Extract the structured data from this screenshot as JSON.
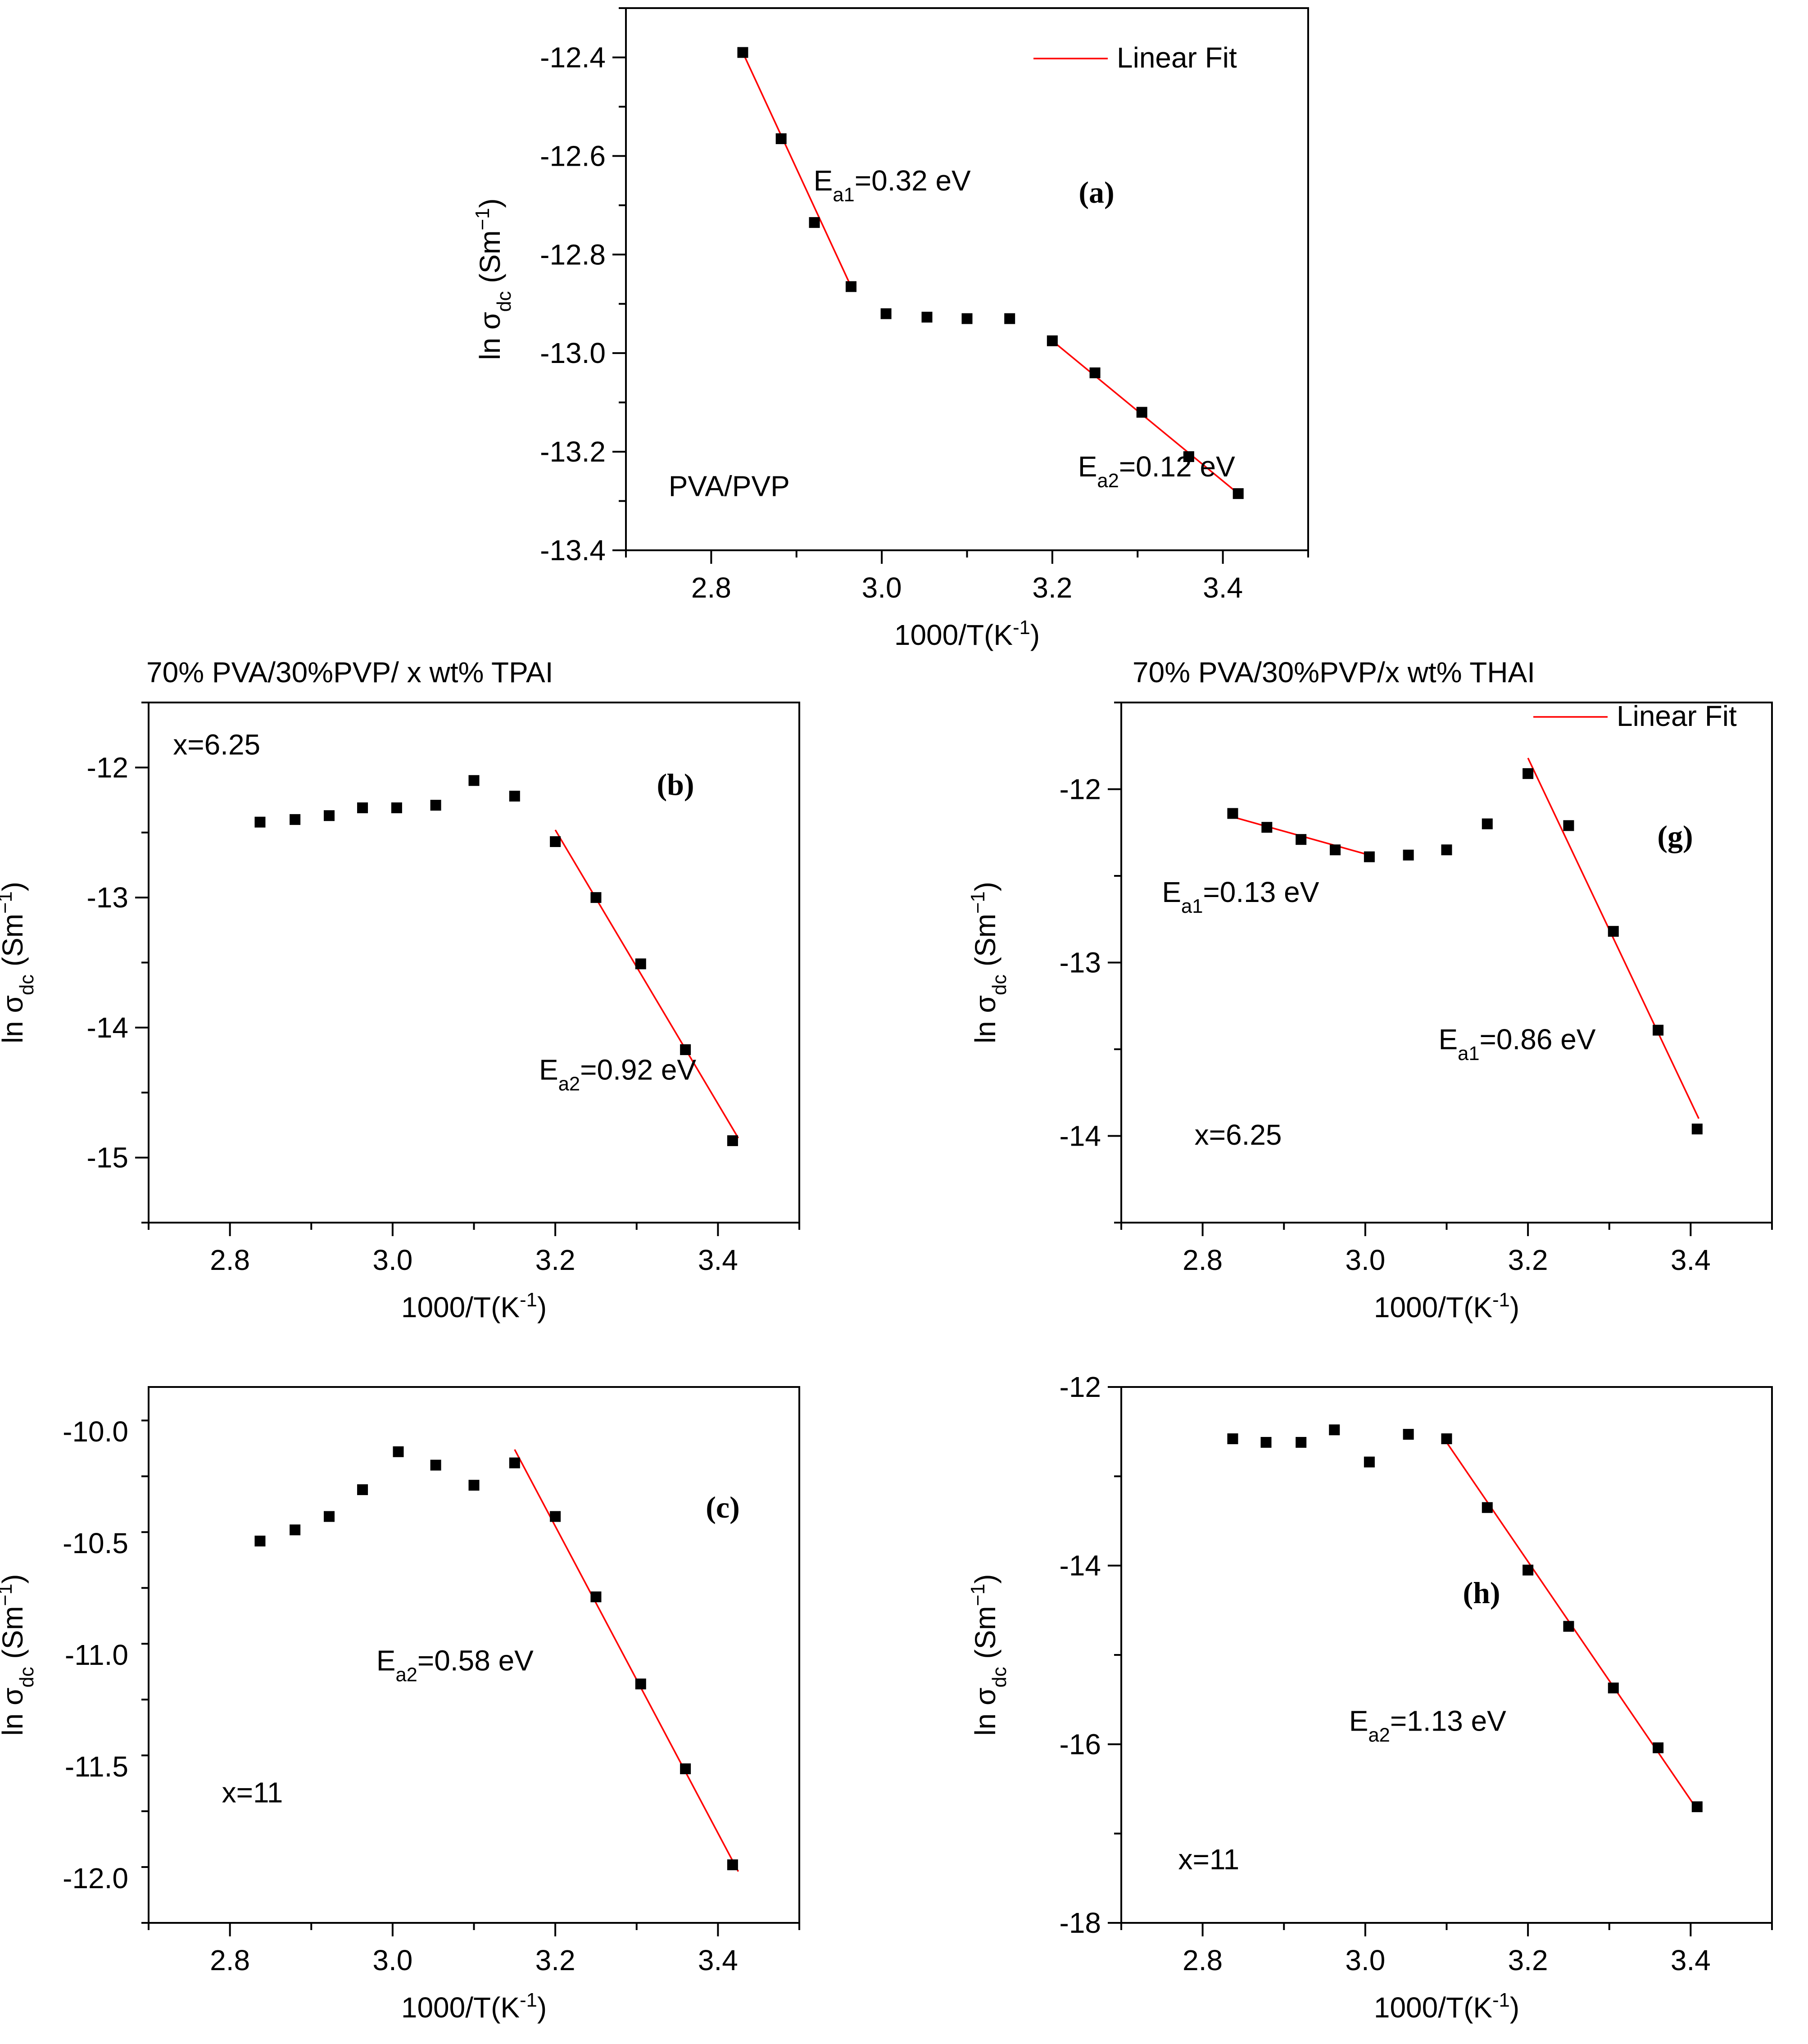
{
  "chart_data": [
    {
      "id": "a",
      "type": "scatter",
      "panel_label": "(a)",
      "title": "",
      "xlabel": "1000/T(K",
      "xlabel_sup": "-1",
      "xlabel_tail": ")",
      "ylabel_main": "ln σ",
      "ylabel_sub": "dc",
      "ylabel_unit": " (Sm",
      "ylabel_sup": "−1",
      "ylabel_tail": ")",
      "xlim": [
        2.7,
        3.5
      ],
      "ylim": [
        -13.4,
        -12.3
      ],
      "xticks": [
        2.8,
        3.0,
        3.2,
        3.4
      ],
      "xtick_labels": [
        "2.8",
        "3.0",
        "3.2",
        "3.4"
      ],
      "yticks": [
        -13.4,
        -13.2,
        -13.0,
        -12.8,
        -12.6,
        -12.4
      ],
      "ytick_labels": [
        "-13.4",
        "-13.2",
        "-13.0",
        "-12.8",
        "-12.6",
        "-12.4"
      ],
      "series": [
        {
          "name": "data",
          "x": [
            2.837,
            2.882,
            2.921,
            2.964,
            3.005,
            3.053,
            3.1,
            3.15,
            3.2,
            3.25,
            3.305,
            3.36,
            3.418
          ],
          "y": [
            -12.39,
            -12.565,
            -12.735,
            -12.865,
            -12.92,
            -12.927,
            -12.93,
            -12.93,
            -12.975,
            -13.04,
            -13.12,
            -13.21,
            -13.285
          ]
        }
      ],
      "fits": [
        {
          "x": [
            2.837,
            2.964
          ],
          "y": [
            -12.39,
            -12.865
          ]
        },
        {
          "x": [
            3.2,
            3.418
          ],
          "y": [
            -12.975,
            -13.285
          ]
        }
      ],
      "legend": "Linear Fit",
      "annotations": [
        {
          "type": "energy",
          "main": "E",
          "sub": "a1",
          "value": "=0.32 eV",
          "x": 2.92,
          "y": -12.67
        },
        {
          "type": "energy",
          "main": "E",
          "sub": "a2",
          "value": "=0.12 eV",
          "x": 3.23,
          "y": -13.25
        },
        {
          "type": "plain",
          "text": "PVA/PVP",
          "x": 2.75,
          "y": -13.29
        }
      ]
    },
    {
      "id": "b",
      "type": "scatter",
      "panel_label": "(b)",
      "title": "70% PVA/30%PVP/ x wt% TPAI",
      "xlabel": "1000/T(K",
      "xlabel_sup": "-1",
      "xlabel_tail": ")",
      "ylabel_main": "ln σ",
      "ylabel_sub": "dc",
      "ylabel_unit": " (Sm",
      "ylabel_sup": "−1",
      "ylabel_tail": ")",
      "xlim": [
        2.7,
        3.5
      ],
      "ylim": [
        -15.5,
        -11.5
      ],
      "xticks": [
        2.8,
        3.0,
        3.2,
        3.4
      ],
      "xtick_labels": [
        "2.8",
        "3.0",
        "3.2",
        "3.4"
      ],
      "yticks": [
        -15,
        -14,
        -13,
        -12
      ],
      "ytick_labels": [
        "-15",
        "-14",
        "-13",
        "-12"
      ],
      "series": [
        {
          "name": "data",
          "x": [
            2.837,
            2.88,
            2.922,
            2.963,
            3.005,
            3.053,
            3.1,
            3.15,
            3.2,
            3.25,
            3.305,
            3.36,
            3.418
          ],
          "y": [
            -12.42,
            -12.4,
            -12.37,
            -12.31,
            -12.31,
            -12.29,
            -12.1,
            -12.22,
            -12.57,
            -13.0,
            -13.51,
            -14.17,
            -14.87
          ]
        }
      ],
      "fits": [
        {
          "x": [
            3.2,
            3.425
          ],
          "y": [
            -12.48,
            -14.85
          ]
        }
      ],
      "legend": "",
      "annotations": [
        {
          "type": "energy",
          "main": "E",
          "sub": "a2",
          "value": "=0.92 eV",
          "x": 3.18,
          "y": -14.4
        },
        {
          "type": "plain",
          "text": "x=6.25",
          "x": 2.73,
          "y": -11.9
        }
      ]
    },
    {
      "id": "g",
      "type": "scatter",
      "panel_label": "(g)",
      "title": "70% PVA/30%PVP/x wt% THAI",
      "xlabel": "1000/T(K",
      "xlabel_sup": "-1",
      "xlabel_tail": ")",
      "ylabel_main": "ln σ",
      "ylabel_sub": "dc",
      "ylabel_unit": " (Sm",
      "ylabel_sup": "−1",
      "ylabel_tail": ")",
      "xlim": [
        2.7,
        3.5
      ],
      "ylim": [
        -14.5,
        -11.5
      ],
      "xticks": [
        2.8,
        3.0,
        3.2,
        3.4
      ],
      "xtick_labels": [
        "2.8",
        "3.0",
        "3.2",
        "3.4"
      ],
      "yticks": [
        -14,
        -13,
        -12
      ],
      "ytick_labels": [
        "-14",
        "-13",
        "-12"
      ],
      "series": [
        {
          "name": "data",
          "x": [
            2.837,
            2.879,
            2.921,
            2.963,
            3.005,
            3.053,
            3.1,
            3.15,
            3.2,
            3.25,
            3.305,
            3.36,
            3.408
          ],
          "y": [
            -12.14,
            -12.22,
            -12.29,
            -12.35,
            -12.39,
            -12.38,
            -12.35,
            -12.2,
            -11.91,
            -12.21,
            -12.82,
            -13.39,
            -13.96
          ]
        }
      ],
      "fits": [
        {
          "x": [
            2.837,
            3.005
          ],
          "y": [
            -12.16,
            -12.38
          ]
        },
        {
          "x": [
            3.2,
            3.41
          ],
          "y": [
            -11.82,
            -13.9
          ]
        }
      ],
      "legend": "Linear Fit",
      "annotations": [
        {
          "type": "energy",
          "main": "E",
          "sub": "a1",
          "value": "=0.13 eV",
          "x": 2.75,
          "y": -12.65
        },
        {
          "type": "energy",
          "main": "E",
          "sub": "a1",
          "value": "=0.86 eV",
          "x": 3.09,
          "y": -13.5
        },
        {
          "type": "plain",
          "text": "x=6.25",
          "x": 2.79,
          "y": -14.05
        }
      ]
    },
    {
      "id": "c",
      "type": "scatter",
      "panel_label": "(c)",
      "title": "",
      "xlabel": "1000/T(K",
      "xlabel_sup": "-1",
      "xlabel_tail": ")",
      "ylabel_main": "ln σ",
      "ylabel_sub": "dc",
      "ylabel_unit": " (Sm",
      "ylabel_sup": "−1",
      "ylabel_tail": ")",
      "xlim": [
        2.7,
        3.5
      ],
      "ylim": [
        -12.2,
        -9.8
      ],
      "xticks": [
        2.8,
        3.0,
        3.2,
        3.4
      ],
      "xtick_labels": [
        "2.8",
        "3.0",
        "3.2",
        "3.4"
      ],
      "yticks": [
        -12.0,
        -11.5,
        -11.0,
        -10.5,
        -10.0
      ],
      "ytick_labels": [
        "-12.0",
        "-11.5",
        "-11.0",
        "-10.5",
        "-10.0"
      ],
      "series": [
        {
          "name": "data",
          "x": [
            2.837,
            2.88,
            2.922,
            2.963,
            3.007,
            3.053,
            3.1,
            3.15,
            3.2,
            3.25,
            3.305,
            3.36,
            3.418
          ],
          "y": [
            -10.49,
            -10.44,
            -10.38,
            -10.26,
            -10.09,
            -10.15,
            -10.24,
            -10.14,
            -10.38,
            -10.74,
            -11.13,
            -11.51,
            -11.94
          ]
        }
      ],
      "fits": [
        {
          "x": [
            3.15,
            3.425
          ],
          "y": [
            -10.08,
            -11.97
          ]
        }
      ],
      "legend": "",
      "annotations": [
        {
          "type": "energy",
          "main": "E",
          "sub": "a2",
          "value": "=0.58 eV",
          "x": 2.98,
          "y": -11.07
        },
        {
          "type": "plain",
          "text": "x=11",
          "x": 2.79,
          "y": -11.66
        }
      ]
    },
    {
      "id": "h",
      "type": "scatter",
      "panel_label": "(h)",
      "title": "",
      "xlabel": "1000/T(K",
      "xlabel_sup": "-1",
      "xlabel_tail": ")",
      "ylabel_main": "ln σ",
      "ylabel_sub": "dc",
      "ylabel_unit": " (Sm",
      "ylabel_sup": "−1",
      "ylabel_tail": ")",
      "xlim": [
        2.7,
        3.5
      ],
      "ylim": [
        -18,
        -12
      ],
      "xticks": [
        2.8,
        3.0,
        3.2,
        3.4
      ],
      "xtick_labels": [
        "2.8",
        "3.0",
        "3.2",
        "3.4"
      ],
      "yticks": [
        -18,
        -16,
        -14,
        -12
      ],
      "ytick_labels": [
        "-18",
        "-16",
        "-14",
        "-12"
      ],
      "series": [
        {
          "name": "data",
          "x": [
            2.837,
            2.878,
            2.921,
            2.962,
            3.005,
            3.053,
            3.1,
            3.15,
            3.2,
            3.25,
            3.305,
            3.36,
            3.408
          ],
          "y": [
            -12.58,
            -12.62,
            -12.62,
            -12.48,
            -12.84,
            -12.53,
            -12.58,
            -13.35,
            -14.05,
            -14.68,
            -15.37,
            -16.04,
            -16.7
          ]
        }
      ],
      "fits": [
        {
          "x": [
            3.1,
            3.408
          ],
          "y": [
            -12.62,
            -16.73
          ]
        }
      ],
      "legend": "",
      "annotations": [
        {
          "type": "energy",
          "main": "E",
          "sub": "a2",
          "value": "=1.13 eV",
          "x": 2.98,
          "y": -15.85
        },
        {
          "type": "plain",
          "text": "x=11",
          "x": 2.77,
          "y": -17.4
        }
      ]
    }
  ]
}
